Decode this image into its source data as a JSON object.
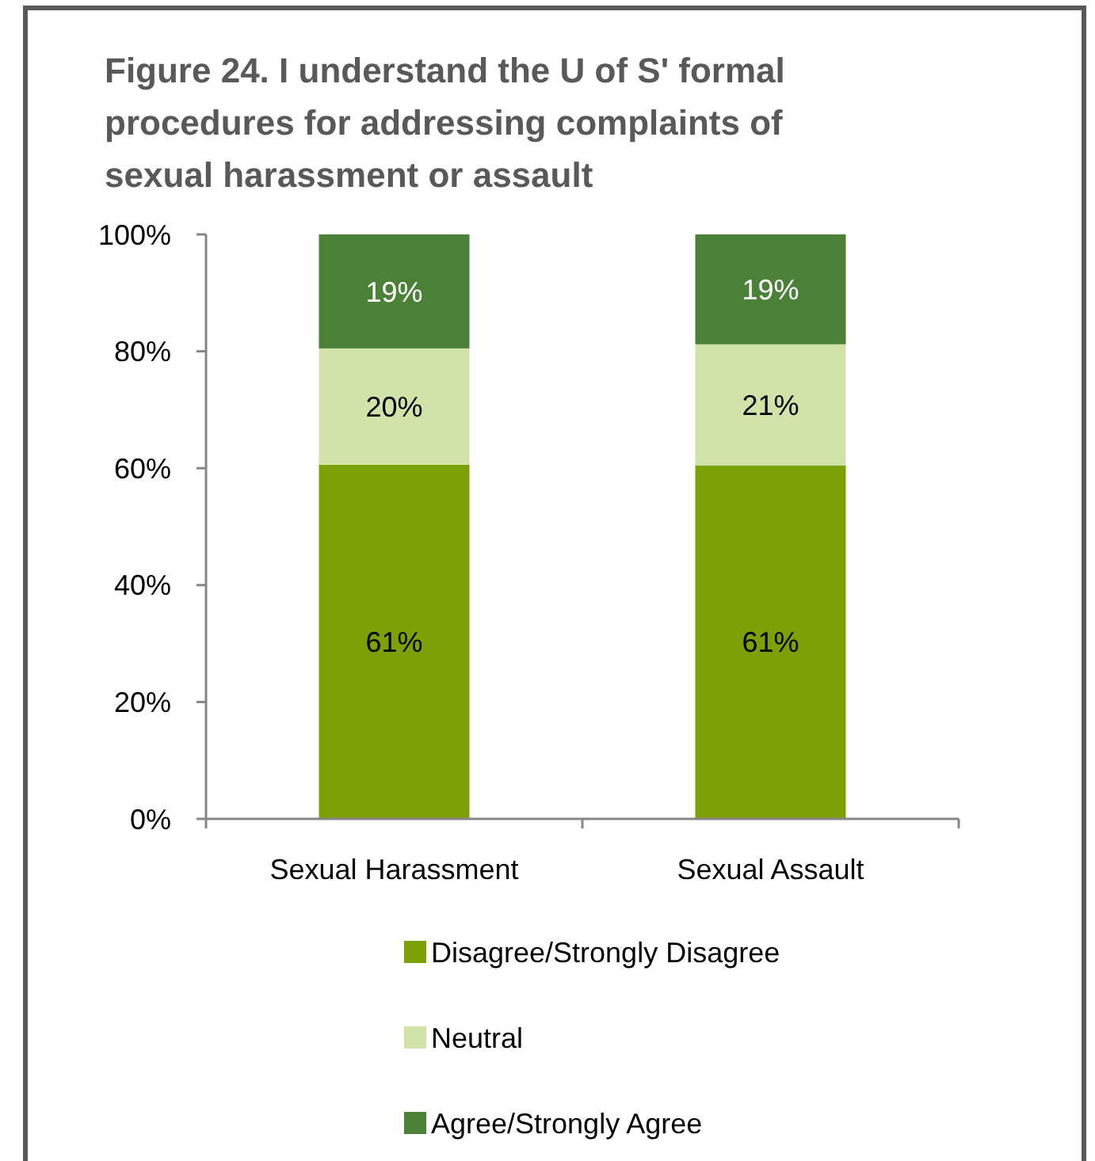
{
  "chart_data": {
    "type": "bar",
    "title": "Figure 24. I understand the U of S' formal procedures for addressing complaints of sexual harassment or assault",
    "categories": [
      "Sexual Harassment",
      "Sexual Assault"
    ],
    "stacked": true,
    "series": [
      {
        "name": "Disagree/Strongly Disagree",
        "color": "#7ba105",
        "values": [
          60.6,
          60.5
        ],
        "value_labels": [
          "61%",
          "61%"
        ]
      },
      {
        "name": "Neutral",
        "color": "#d1e3a9",
        "values": [
          19.9,
          20.7
        ],
        "value_labels": [
          "20%",
          "21%"
        ]
      },
      {
        "name": "Agree/Strongly Agree",
        "color": "#4a8137",
        "values": [
          19.5,
          18.8
        ],
        "value_labels": [
          "19%",
          "19%"
        ]
      }
    ],
    "ylim": [
      0,
      100
    ],
    "yticks": [
      {
        "value": 0,
        "label": "0%"
      },
      {
        "value": 20,
        "label": "20%"
      },
      {
        "value": 40,
        "label": "40%"
      },
      {
        "value": 60,
        "label": "60%"
      },
      {
        "value": 80,
        "label": "80%"
      },
      {
        "value": 100,
        "label": "100%"
      }
    ],
    "grid": false,
    "legend": "bottom"
  }
}
